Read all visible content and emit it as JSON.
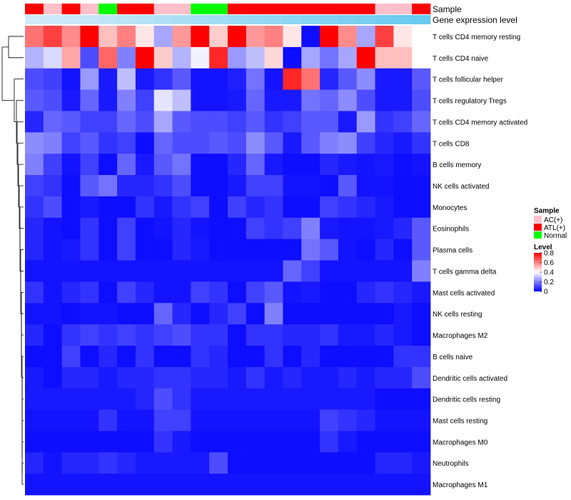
{
  "chart_data": {
    "type": "heatmap",
    "title": "",
    "annotation_labels": {
      "sample": "Sample",
      "gene": "Gene expression level"
    },
    "sample_groups": [
      "ATL(+)",
      "AC(+)",
      "ATL(+)",
      "AC(+)",
      "Normal",
      "ATL(+)",
      "ATL(+)",
      "AC(+)",
      "AC(+)",
      "Normal",
      "Normal",
      "ATL(+)",
      "ATL(+)",
      "ATL(+)",
      "ATL(+)",
      "ATL(+)",
      "ATL(+)",
      "ATL(+)",
      "ATL(+)",
      "AC(+)",
      "AC(+)",
      "ATL(+)"
    ],
    "gene_expression_level": [
      0.1,
      0.12,
      0.15,
      0.18,
      0.22,
      0.26,
      0.3,
      0.34,
      0.38,
      0.42,
      0.46,
      0.5,
      0.54,
      0.58,
      0.62,
      0.66,
      0.7,
      0.74,
      0.78,
      0.82,
      0.86,
      0.9
    ],
    "rows": [
      "T cells CD4 memory resting",
      "T cells CD4 naive",
      "T cells follicular helper",
      "T cells regulatory  Tregs",
      "T cells CD4 memory activated",
      "T cells CD8",
      "B cells memory",
      "NK cells activated",
      "Monocytes",
      "Eosinophils",
      "Plasma cells",
      "T cells gamma delta",
      "Mast cells activated",
      "NK cells resting",
      "Macrophages M2",
      "B cells naive",
      "Dendritic cells activated",
      "Dendritic cells resting",
      "Mast cells resting",
      "Macrophages M0",
      "Neutrophils",
      "Macrophages M1"
    ],
    "values": [
      [
        0.62,
        0.7,
        0.58,
        0.8,
        0.5,
        0.6,
        0.44,
        0.26,
        0.56,
        0.8,
        0.48,
        0.8,
        0.56,
        0.6,
        0.44,
        0.02,
        0.8,
        0.58,
        0.26,
        0.7,
        0.44,
        0.4
      ],
      [
        0.28,
        0.34,
        0.54,
        0.12,
        0.64,
        0.2,
        0.8,
        0.48,
        0.28,
        0.38,
        0.74,
        0.24,
        0.3,
        0.46,
        0.02,
        0.26,
        0.18,
        0.26,
        0.8,
        0.5,
        0.5,
        0.4
      ],
      [
        0.12,
        0.1,
        0.03,
        0.24,
        0.04,
        0.3,
        0.04,
        0.08,
        0.14,
        0.03,
        0.03,
        0.05,
        0.18,
        0.03,
        0.74,
        0.62,
        0.06,
        0.14,
        0.22,
        0.04,
        0.04,
        0.14
      ],
      [
        0.14,
        0.12,
        0.04,
        0.16,
        0.04,
        0.2,
        0.1,
        0.36,
        0.3,
        0.03,
        0.03,
        0.04,
        0.16,
        0.04,
        0.04,
        0.18,
        0.16,
        0.22,
        0.12,
        0.04,
        0.04,
        0.12
      ],
      [
        0.06,
        0.16,
        0.14,
        0.1,
        0.1,
        0.16,
        0.12,
        0.26,
        0.14,
        0.12,
        0.12,
        0.1,
        0.14,
        0.08,
        0.1,
        0.14,
        0.14,
        0.04,
        0.24,
        0.08,
        0.1,
        0.16
      ],
      [
        0.22,
        0.2,
        0.1,
        0.14,
        0.08,
        0.1,
        0.02,
        0.16,
        0.12,
        0.12,
        0.14,
        0.12,
        0.22,
        0.14,
        0.04,
        0.14,
        0.2,
        0.22,
        0.1,
        0.06,
        0.04,
        0.08
      ],
      [
        0.2,
        0.1,
        0.03,
        0.1,
        0.02,
        0.16,
        0.04,
        0.14,
        0.18,
        0.02,
        0.02,
        0.06,
        0.16,
        0.04,
        0.02,
        0.02,
        0.06,
        0.04,
        0.03,
        0.04,
        0.02,
        0.03
      ],
      [
        0.1,
        0.08,
        0.02,
        0.14,
        0.18,
        0.06,
        0.06,
        0.08,
        0.12,
        0.02,
        0.02,
        0.04,
        0.1,
        0.1,
        0.03,
        0.03,
        0.02,
        0.14,
        0.03,
        0.03,
        0.02,
        0.02
      ],
      [
        0.08,
        0.12,
        0.02,
        0.04,
        0.02,
        0.02,
        0.08,
        0.04,
        0.08,
        0.1,
        0.02,
        0.1,
        0.06,
        0.08,
        0.02,
        0.02,
        0.1,
        0.08,
        0.06,
        0.04,
        0.02,
        0.02
      ],
      [
        0.06,
        0.03,
        0.02,
        0.08,
        0.02,
        0.1,
        0.02,
        0.03,
        0.06,
        0.03,
        0.02,
        0.02,
        0.1,
        0.08,
        0.1,
        0.2,
        0.04,
        0.03,
        0.03,
        0.04,
        0.06,
        0.14
      ],
      [
        0.06,
        0.03,
        0.04,
        0.08,
        0.02,
        0.1,
        0.02,
        0.02,
        0.06,
        0.04,
        0.02,
        0.02,
        0.02,
        0.02,
        0.02,
        0.18,
        0.14,
        0.03,
        0.02,
        0.06,
        0.02,
        0.14
      ],
      [
        0.03,
        0.03,
        0.03,
        0.03,
        0.03,
        0.03,
        0.03,
        0.03,
        0.03,
        0.03,
        0.03,
        0.03,
        0.03,
        0.03,
        0.16,
        0.1,
        0.03,
        0.03,
        0.03,
        0.03,
        0.03,
        0.2
      ],
      [
        0.08,
        0.03,
        0.06,
        0.08,
        0.02,
        0.1,
        0.06,
        0.03,
        0.03,
        0.1,
        0.08,
        0.02,
        0.1,
        0.14,
        0.03,
        0.04,
        0.02,
        0.02,
        0.06,
        0.08,
        0.06,
        0.04
      ],
      [
        0.03,
        0.03,
        0.02,
        0.03,
        0.03,
        0.02,
        0.02,
        0.16,
        0.06,
        0.02,
        0.06,
        0.1,
        0.02,
        0.2,
        0.02,
        0.02,
        0.02,
        0.02,
        0.02,
        0.02,
        0.04,
        0.02
      ],
      [
        0.06,
        0.02,
        0.08,
        0.1,
        0.08,
        0.1,
        0.08,
        0.1,
        0.12,
        0.08,
        0.08,
        0.02,
        0.08,
        0.08,
        0.06,
        0.06,
        0.08,
        0.04,
        0.04,
        0.06,
        0.04,
        0.02
      ],
      [
        0.02,
        0.02,
        0.1,
        0.02,
        0.06,
        0.02,
        0.08,
        0.02,
        0.02,
        0.08,
        0.06,
        0.02,
        0.02,
        0.08,
        0.02,
        0.06,
        0.02,
        0.02,
        0.02,
        0.02,
        0.08,
        0.08
      ],
      [
        0.04,
        0.02,
        0.06,
        0.06,
        0.04,
        0.06,
        0.06,
        0.08,
        0.08,
        0.06,
        0.06,
        0.04,
        0.08,
        0.04,
        0.06,
        0.04,
        0.04,
        0.06,
        0.04,
        0.06,
        0.06,
        0.12
      ],
      [
        0.04,
        0.04,
        0.04,
        0.04,
        0.04,
        0.04,
        0.06,
        0.12,
        0.08,
        0.04,
        0.04,
        0.04,
        0.04,
        0.04,
        0.04,
        0.04,
        0.04,
        0.04,
        0.04,
        0.02,
        0.02,
        0.02
      ],
      [
        0.03,
        0.03,
        0.03,
        0.03,
        0.08,
        0.03,
        0.03,
        0.1,
        0.1,
        0.03,
        0.03,
        0.03,
        0.03,
        0.03,
        0.03,
        0.03,
        0.1,
        0.08,
        0.06,
        0.03,
        0.03,
        0.03
      ],
      [
        0.02,
        0.02,
        0.02,
        0.02,
        0.02,
        0.02,
        0.02,
        0.08,
        0.04,
        0.02,
        0.02,
        0.02,
        0.02,
        0.02,
        0.02,
        0.02,
        0.08,
        0.04,
        0.02,
        0.02,
        0.02,
        0.02
      ],
      [
        0.06,
        0.03,
        0.06,
        0.06,
        0.08,
        0.06,
        0.04,
        0.04,
        0.04,
        0.04,
        0.12,
        0.02,
        0.02,
        0.02,
        0.02,
        0.02,
        0.02,
        0.02,
        0.02,
        0.06,
        0.06,
        0.04
      ],
      [
        0.03,
        0.03,
        0.03,
        0.03,
        0.03,
        0.03,
        0.03,
        0.03,
        0.03,
        0.03,
        0.03,
        0.03,
        0.03,
        0.03,
        0.03,
        0.03,
        0.03,
        0.03,
        0.03,
        0.03,
        0.03,
        0.03
      ]
    ],
    "color_scale": {
      "min": 0,
      "mid": 0.4,
      "max": 0.8,
      "low_color": "#0000FF",
      "mid_color": "#FFFFFF",
      "high_color": "#FF0000"
    },
    "gene_scale": {
      "low_color": "#DDEEFA",
      "high_color": "#5BC6EE"
    },
    "legend": {
      "position": "right",
      "sample_title": "Sample",
      "sample_entries": [
        {
          "label": "AC(+)",
          "color": "#FFC0CB"
        },
        {
          "label": "ATL(+)",
          "color": "#FF0000"
        },
        {
          "label": "Normal",
          "color": "#00FF00"
        }
      ],
      "level_title": "Level",
      "level_ticks": [
        "0.8",
        "0.6",
        "0.4",
        "0.2",
        "0"
      ]
    },
    "row_dendrogram": true,
    "column_dendrogram": false
  }
}
